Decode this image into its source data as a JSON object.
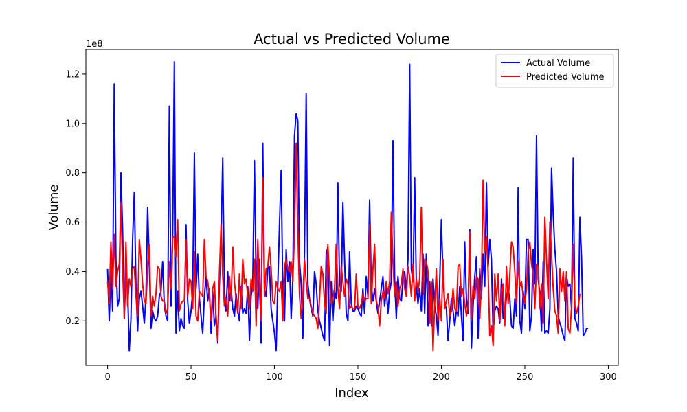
{
  "chart_data": {
    "type": "line",
    "title": "Actual vs Predicted Volume",
    "xlabel": "Index",
    "ylabel": "Volume",
    "y_offset_label": "1e8",
    "xlim": [
      -13,
      306
    ],
    "ylim": [
      0.02,
      1.3
    ],
    "x_ticks": [
      0,
      50,
      100,
      150,
      200,
      250,
      300
    ],
    "y_ticks": [
      0.2,
      0.4,
      0.6,
      0.8,
      1.0,
      1.2
    ],
    "y_tick_labels": [
      "0.2",
      "0.4",
      "0.6",
      "0.8",
      "1.0",
      "1.2"
    ],
    "grid": false,
    "legend": "top-right",
    "x_start": 0,
    "series": [
      {
        "name": "Actual Volume",
        "color": "#0000ff",
        "values": [
          0.41,
          0.2,
          0.42,
          0.24,
          1.16,
          0.45,
          0.26,
          0.29,
          0.8,
          0.57,
          0.21,
          0.4,
          0.33,
          0.08,
          0.21,
          0.53,
          0.72,
          0.34,
          0.16,
          0.29,
          0.32,
          0.26,
          0.19,
          0.3,
          0.66,
          0.43,
          0.17,
          0.24,
          0.21,
          0.2,
          0.22,
          0.3,
          0.32,
          0.44,
          0.26,
          0.22,
          0.2,
          1.07,
          0.26,
          0.54,
          1.25,
          0.15,
          0.32,
          0.16,
          0.21,
          0.18,
          0.17,
          0.59,
          0.28,
          0.19,
          0.24,
          0.32,
          0.88,
          0.33,
          0.47,
          0.29,
          0.22,
          0.15,
          0.3,
          0.38,
          0.28,
          0.33,
          0.15,
          0.32,
          0.18,
          0.22,
          0.11,
          0.35,
          0.52,
          0.86,
          0.33,
          0.24,
          0.4,
          0.28,
          0.33,
          0.25,
          0.22,
          0.31,
          0.24,
          0.2,
          0.34,
          0.23,
          0.25,
          0.23,
          0.34,
          0.12,
          0.3,
          0.36,
          0.85,
          0.36,
          0.25,
          0.45,
          0.11,
          0.92,
          0.33,
          0.3,
          0.41,
          0.42,
          0.25,
          0.2,
          0.15,
          0.08,
          0.35,
          0.59,
          0.81,
          0.32,
          0.2,
          0.49,
          0.36,
          0.44,
          0.21,
          0.37,
          0.95,
          1.04,
          1.01,
          0.44,
          0.35,
          0.13,
          0.48,
          1.12,
          0.35,
          0.29,
          0.25,
          0.22,
          0.4,
          0.35,
          0.24,
          0.2,
          0.17,
          0.14,
          0.12,
          0.47,
          0.5,
          0.1,
          0.36,
          0.2,
          0.32,
          0.29,
          0.76,
          0.35,
          0.32,
          0.68,
          0.45,
          0.23,
          0.2,
          0.48,
          0.27,
          0.24,
          0.24,
          0.26,
          0.25,
          0.23,
          0.22,
          0.33,
          0.23,
          0.38,
          0.3,
          0.69,
          0.35,
          0.28,
          0.33,
          0.28,
          0.23,
          0.28,
          0.33,
          0.38,
          0.26,
          0.33,
          0.23,
          0.32,
          0.36,
          0.93,
          0.37,
          0.21,
          0.38,
          0.29,
          0.28,
          0.37,
          0.4,
          0.32,
          0.45,
          1.24,
          0.41,
          0.36,
          0.78,
          0.34,
          0.27,
          0.33,
          0.24,
          0.47,
          0.23,
          0.47,
          0.18,
          0.36,
          0.18,
          0.37,
          0.26,
          0.22,
          0.14,
          0.36,
          0.61,
          0.37,
          0.27,
          0.25,
          0.12,
          0.2,
          0.29,
          0.24,
          0.18,
          0.24,
          0.22,
          0.34,
          0.22,
          0.12,
          0.52,
          0.29,
          0.23,
          0.57,
          0.09,
          0.26,
          0.38,
          0.46,
          0.13,
          0.41,
          0.29,
          0.47,
          0.34,
          0.76,
          0.42,
          0.53,
          0.45,
          0.15,
          0.24,
          0.26,
          0.25,
          0.19,
          0.37,
          0.21,
          0.22,
          0.3,
          0.33,
          0.29,
          0.18,
          0.17,
          0.29,
          0.22,
          0.74,
          0.2,
          0.15,
          0.32,
          0.25,
          0.53,
          0.53,
          0.16,
          0.22,
          0.49,
          0.35,
          0.95,
          0.37,
          0.31,
          0.16,
          0.44,
          0.15,
          0.16,
          0.15,
          0.25,
          0.82,
          0.63,
          0.49,
          0.4,
          0.22,
          0.19,
          0.17,
          0.14,
          0.12,
          0.38,
          0.34,
          0.35,
          0.25,
          0.86,
          0.21,
          0.19,
          0.16,
          0.62,
          0.45,
          0.14,
          0.15,
          0.17,
          0.17
        ]
      },
      {
        "name": "Predicted Volume",
        "color": "#ff0000",
        "values": [
          0.36,
          0.27,
          0.52,
          0.33,
          0.55,
          0.34,
          0.4,
          0.43,
          0.68,
          0.42,
          0.21,
          0.52,
          0.26,
          0.37,
          0.34,
          0.41,
          0.42,
          0.3,
          0.22,
          0.53,
          0.45,
          0.35,
          0.28,
          0.27,
          0.41,
          0.51,
          0.22,
          0.3,
          0.26,
          0.31,
          0.42,
          0.41,
          0.3,
          0.28,
          0.28,
          0.23,
          0.25,
          0.44,
          0.33,
          0.54,
          0.54,
          0.46,
          0.61,
          0.24,
          0.27,
          0.28,
          0.28,
          0.53,
          0.3,
          0.37,
          0.36,
          0.25,
          0.48,
          0.22,
          0.2,
          0.32,
          0.31,
          0.3,
          0.53,
          0.38,
          0.36,
          0.3,
          0.2,
          0.33,
          0.36,
          0.2,
          0.12,
          0.39,
          0.59,
          0.38,
          0.26,
          0.29,
          0.22,
          0.38,
          0.28,
          0.5,
          0.36,
          0.29,
          0.23,
          0.39,
          0.25,
          0.45,
          0.35,
          0.37,
          0.3,
          0.25,
          0.37,
          0.32,
          0.45,
          0.18,
          0.53,
          0.32,
          0.2,
          0.78,
          0.3,
          0.41,
          0.42,
          0.5,
          0.41,
          0.28,
          0.27,
          0.36,
          0.33,
          0.32,
          0.36,
          0.2,
          0.42,
          0.45,
          0.41,
          0.4,
          0.44,
          0.36,
          0.56,
          0.92,
          0.57,
          0.3,
          0.21,
          0.3,
          0.45,
          0.36,
          0.29,
          0.29,
          0.26,
          0.23,
          0.22,
          0.21,
          0.17,
          0.29,
          0.42,
          0.39,
          0.27,
          0.23,
          0.51,
          0.37,
          0.27,
          0.3,
          0.33,
          0.51,
          0.33,
          0.25,
          0.42,
          0.36,
          0.3,
          0.37,
          0.35,
          0.25,
          0.26,
          0.25,
          0.25,
          0.39,
          0.26,
          0.25,
          0.27,
          0.31,
          0.28,
          0.29,
          0.29,
          0.59,
          0.27,
          0.41,
          0.51,
          0.28,
          0.26,
          0.18,
          0.28,
          0.32,
          0.29,
          0.36,
          0.31,
          0.36,
          0.64,
          0.44,
          0.3,
          0.36,
          0.26,
          0.33,
          0.35,
          0.41,
          0.33,
          0.3,
          0.42,
          0.38,
          0.3,
          0.43,
          0.28,
          0.37,
          0.32,
          0.37,
          0.66,
          0.31,
          0.45,
          0.44,
          0.4,
          0.19,
          0.36,
          0.08,
          0.27,
          0.41,
          0.2,
          0.29,
          0.2,
          0.45,
          0.25,
          0.28,
          0.31,
          0.22,
          0.24,
          0.33,
          0.25,
          0.24,
          0.42,
          0.43,
          0.3,
          0.33,
          0.27,
          0.22,
          0.26,
          0.56,
          0.21,
          0.34,
          0.29,
          0.38,
          0.37,
          0.21,
          0.35,
          0.77,
          0.48,
          0.54,
          0.4,
          0.14,
          0.18,
          0.1,
          0.39,
          0.28,
          0.39,
          0.2,
          0.33,
          0.35,
          0.18,
          0.42,
          0.27,
          0.39,
          0.52,
          0.5,
          0.4,
          0.27,
          0.44,
          0.34,
          0.36,
          0.3,
          0.27,
          0.33,
          0.48,
          0.52,
          0.43,
          0.39,
          0.25,
          0.43,
          0.42,
          0.25,
          0.35,
          0.19,
          0.62,
          0.45,
          0.29,
          0.6,
          0.47,
          0.33,
          0.24,
          0.22,
          0.15,
          0.41,
          0.32,
          0.4,
          0.28,
          0.4,
          0.17,
          0.15,
          0.26,
          0.51,
          0.26,
          0.23,
          0.26,
          0.31
        ]
      }
    ]
  }
}
